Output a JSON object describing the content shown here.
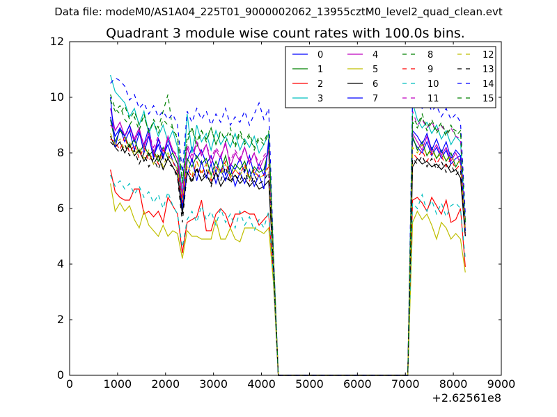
{
  "suptitle": "Data file: modeM0/AS1A04_225T01_9000002062_13955cztM0_level2_quad_clean.evt",
  "chart_data": {
    "type": "line",
    "title": "Quadrant 3 module wise count rates with 100.0s bins.",
    "xlabel": "",
    "ylabel": "",
    "x_offset_label": "+2.62561e8",
    "xlim": [
      0,
      9000
    ],
    "ylim": [
      0,
      12
    ],
    "xticks": [
      0,
      1000,
      2000,
      3000,
      4000,
      5000,
      6000,
      7000,
      8000,
      9000
    ],
    "yticks": [
      0,
      2,
      4,
      6,
      8,
      10,
      12
    ],
    "legend_position": "top-right",
    "legend_columns": 4,
    "grid": false,
    "x": [
      850,
      950,
      1050,
      1150,
      1250,
      1350,
      1450,
      1550,
      1650,
      1750,
      1850,
      1950,
      2050,
      2150,
      2250,
      2350,
      2450,
      2550,
      2650,
      2750,
      2850,
      2950,
      3050,
      3150,
      3250,
      3350,
      3450,
      3550,
      3650,
      3750,
      3850,
      3950,
      4050,
      4150,
      4250,
      4350,
      7000,
      7050,
      7150,
      7250,
      7350,
      7450,
      7550,
      7650,
      7750,
      7850,
      7950,
      8050,
      8150,
      8250
    ],
    "series": [
      {
        "name": "0",
        "color": "#0000ff",
        "dash": "solid",
        "values": [
          9.3,
          8.6,
          8.9,
          8.4,
          8.8,
          8.1,
          8.7,
          8.3,
          8.9,
          7.9,
          8.3,
          7.8,
          8.5,
          8.0,
          7.6,
          5.9,
          7.7,
          8.2,
          7.8,
          8.1,
          7.6,
          7.9,
          7.3,
          7.9,
          7.2,
          7.6,
          7.4,
          7.8,
          7.3,
          7.9,
          7.2,
          7.6,
          7.2,
          8.3,
          4.0,
          0.0,
          0.0,
          0.0,
          8.5,
          8.2,
          8.0,
          8.4,
          7.9,
          8.2,
          7.8,
          8.1,
          7.6,
          7.8,
          7.9,
          5.0
        ]
      },
      {
        "name": "1",
        "color": "#008000",
        "dash": "solid",
        "values": [
          9.2,
          8.4,
          8.8,
          8.6,
          8.2,
          8.5,
          8.0,
          8.3,
          7.9,
          8.1,
          7.7,
          8.2,
          7.8,
          8.0,
          7.6,
          6.2,
          7.8,
          7.5,
          7.9,
          7.6,
          7.8,
          7.2,
          7.7,
          7.3,
          7.9,
          7.2,
          7.6,
          7.4,
          7.7,
          7.1,
          7.5,
          7.3,
          7.4,
          8.1,
          3.9,
          0.0,
          0.0,
          0.0,
          8.6,
          8.1,
          8.4,
          7.9,
          8.2,
          7.8,
          8.1,
          7.7,
          8.0,
          7.5,
          7.8,
          5.2
        ]
      },
      {
        "name": "2",
        "color": "#ff0000",
        "dash": "solid",
        "values": [
          7.4,
          6.6,
          6.4,
          6.3,
          6.3,
          6.7,
          6.7,
          5.8,
          5.9,
          5.7,
          5.9,
          5.5,
          6.4,
          6.1,
          5.8,
          4.4,
          5.5,
          5.6,
          5.7,
          6.3,
          5.2,
          5.2,
          5.8,
          6.0,
          5.8,
          5.3,
          5.8,
          5.8,
          5.9,
          5.8,
          5.8,
          5.4,
          5.6,
          5.8,
          3.5,
          0.0,
          0.0,
          0.0,
          6.3,
          6.4,
          6.2,
          5.9,
          6.4,
          6.1,
          5.8,
          6.3,
          5.5,
          5.6,
          6.0,
          3.9
        ]
      },
      {
        "name": "3",
        "color": "#00bfbf",
        "dash": "solid",
        "values": [
          10.8,
          10.2,
          10.0,
          9.8,
          9.3,
          9.6,
          9.0,
          9.5,
          8.7,
          9.1,
          8.6,
          9.0,
          8.4,
          8.8,
          8.2,
          6.5,
          9.4,
          8.0,
          9.0,
          8.4,
          8.7,
          8.1,
          8.8,
          8.3,
          8.6,
          8.2,
          8.7,
          8.1,
          8.5,
          8.2,
          8.6,
          8.0,
          8.3,
          8.7,
          4.2,
          0.0,
          0.0,
          0.0,
          9.8,
          9.2,
          8.9,
          9.1,
          8.7,
          9.0,
          8.5,
          8.8,
          8.3,
          8.6,
          8.4,
          5.5
        ]
      },
      {
        "name": "4",
        "color": "#bf00bf",
        "dash": "solid",
        "values": [
          9.6,
          8.8,
          9.1,
          8.6,
          9.0,
          8.5,
          8.9,
          8.2,
          8.7,
          8.0,
          8.5,
          7.9,
          8.6,
          8.1,
          7.8,
          6.4,
          8.2,
          7.7,
          8.4,
          7.9,
          8.3,
          7.6,
          8.1,
          7.8,
          8.4,
          7.5,
          8.0,
          7.7,
          8.2,
          7.6,
          8.0,
          7.4,
          7.8,
          8.0,
          4.0,
          0.0,
          0.0,
          0.0,
          8.7,
          8.4,
          8.1,
          8.6,
          8.0,
          8.3,
          7.9,
          8.2,
          7.7,
          8.0,
          7.6,
          5.3
        ]
      },
      {
        "name": "5",
        "color": "#bfbf00",
        "dash": "solid",
        "values": [
          6.9,
          5.9,
          6.2,
          5.9,
          6.1,
          5.6,
          5.3,
          5.9,
          5.4,
          5.2,
          5.0,
          5.4,
          5.0,
          5.2,
          5.1,
          4.2,
          5.2,
          5.0,
          5.0,
          4.9,
          4.9,
          4.9,
          5.6,
          4.9,
          4.9,
          5.3,
          4.9,
          4.8,
          5.3,
          5.3,
          5.3,
          5.2,
          5.1,
          5.3,
          3.3,
          0.0,
          0.0,
          0.0,
          5.5,
          5.9,
          5.6,
          5.8,
          5.4,
          4.9,
          5.5,
          5.3,
          4.9,
          5.1,
          4.9,
          3.7
        ]
      },
      {
        "name": "6",
        "color": "#000000",
        "dash": "solid",
        "values": [
          8.6,
          8.2,
          8.4,
          8.0,
          8.3,
          7.9,
          8.1,
          7.7,
          8.0,
          7.6,
          7.9,
          7.4,
          7.8,
          7.5,
          7.2,
          5.8,
          7.3,
          7.0,
          7.4,
          7.0,
          7.2,
          6.9,
          7.3,
          6.8,
          7.1,
          7.0,
          7.2,
          6.9,
          7.1,
          6.8,
          7.0,
          6.7,
          6.8,
          7.0,
          3.8,
          0.0,
          0.0,
          0.0,
          7.5,
          7.8,
          7.6,
          7.7,
          7.5,
          7.6,
          7.4,
          7.6,
          7.3,
          7.4,
          7.1,
          5.0
        ]
      },
      {
        "name": "7",
        "color": "#0000ff",
        "dash": "solid",
        "values": [
          10.0,
          8.2,
          8.9,
          8.6,
          9.0,
          8.4,
          8.8,
          8.0,
          8.6,
          7.8,
          8.5,
          7.9,
          8.3,
          7.7,
          7.4,
          6.1,
          7.2,
          7.8,
          7.0,
          7.7,
          7.1,
          7.6,
          6.9,
          7.4,
          7.0,
          7.5,
          6.8,
          7.3,
          6.9,
          7.4,
          6.8,
          7.2,
          6.7,
          8.5,
          3.7,
          0.0,
          0.0,
          0.0,
          8.8,
          8.6,
          8.3,
          8.7,
          8.1,
          8.5,
          8.0,
          8.4,
          7.8,
          8.1,
          7.9,
          5.2
        ]
      },
      {
        "name": "8",
        "color": "#008000",
        "dash": "dashed",
        "values": [
          9.9,
          9.5,
          9.7,
          9.2,
          9.0,
          9.3,
          8.8,
          9.4,
          8.7,
          9.2,
          8.9,
          9.5,
          10.1,
          8.8,
          8.6,
          7.0,
          8.4,
          8.9,
          8.2,
          8.8,
          8.4,
          8.9,
          8.3,
          8.7,
          8.5,
          8.9,
          8.3,
          8.8,
          8.4,
          8.7,
          8.2,
          8.6,
          8.4,
          8.8,
          4.3,
          0.0,
          0.0,
          0.0,
          9.1,
          8.9,
          9.3,
          8.8,
          9.1,
          8.7,
          9.0,
          8.6,
          8.9,
          8.8,
          8.7,
          5.6
        ]
      },
      {
        "name": "9",
        "color": "#ff0000",
        "dash": "dashed",
        "values": [
          8.5,
          8.4,
          8.1,
          8.6,
          8.0,
          8.3,
          7.8,
          8.2,
          7.7,
          8.0,
          7.6,
          8.1,
          7.9,
          7.7,
          7.3,
          6.2,
          7.5,
          7.1,
          7.7,
          7.2,
          7.6,
          7.0,
          7.5,
          7.3,
          7.7,
          7.1,
          7.4,
          7.2,
          7.6,
          7.0,
          7.4,
          7.1,
          7.2,
          7.5,
          3.9,
          0.0,
          0.0,
          0.0,
          8.0,
          7.8,
          8.1,
          7.7,
          8.0,
          7.6,
          7.9,
          7.5,
          7.8,
          7.4,
          7.6,
          5.1
        ]
      },
      {
        "name": "10",
        "color": "#00bfbf",
        "dash": "dashed",
        "values": [
          7.2,
          6.8,
          7.0,
          6.7,
          6.9,
          6.5,
          6.8,
          6.4,
          6.6,
          6.2,
          6.5,
          6.0,
          6.6,
          6.1,
          5.8,
          4.6,
          5.6,
          5.9,
          5.5,
          6.1,
          5.6,
          5.9,
          5.4,
          6.0,
          5.5,
          5.8,
          5.3,
          5.9,
          5.4,
          5.7,
          5.2,
          5.6,
          5.3,
          5.9,
          3.5,
          0.0,
          0.0,
          0.0,
          6.2,
          6.0,
          6.5,
          5.9,
          6.3,
          5.8,
          6.2,
          5.7,
          6.1,
          6.2,
          6.0,
          4.2
        ]
      },
      {
        "name": "11",
        "color": "#bf00bf",
        "dash": "dashed",
        "values": [
          9.0,
          8.8,
          9.1,
          8.6,
          8.9,
          8.4,
          8.8,
          8.3,
          8.7,
          8.2,
          8.6,
          8.0,
          8.5,
          8.1,
          7.9,
          6.6,
          8.3,
          7.9,
          8.4,
          8.0,
          8.3,
          7.8,
          8.2,
          7.9,
          8.3,
          7.7,
          8.1,
          7.8,
          8.2,
          7.7,
          8.0,
          7.6,
          7.9,
          8.1,
          4.0,
          0.0,
          0.0,
          0.0,
          9.5,
          9.0,
          9.2,
          8.9,
          9.1,
          8.8,
          9.0,
          8.7,
          8.9,
          8.6,
          8.5,
          5.4
        ]
      },
      {
        "name": "12",
        "color": "#bfbf00",
        "dash": "dashed",
        "values": [
          8.7,
          8.3,
          8.5,
          8.1,
          8.4,
          7.9,
          8.2,
          7.8,
          8.1,
          7.6,
          8.0,
          7.5,
          8.0,
          7.7,
          7.4,
          6.3,
          7.6,
          7.2,
          7.7,
          7.3,
          7.6,
          7.1,
          7.5,
          7.2,
          7.6,
          7.1,
          7.4,
          7.2,
          7.5,
          7.0,
          7.3,
          7.1,
          7.2,
          7.6,
          3.9,
          0.0,
          0.0,
          0.0,
          8.2,
          8.0,
          8.3,
          7.9,
          8.1,
          7.8,
          8.0,
          7.7,
          7.9,
          7.6,
          7.7,
          5.2
        ]
      },
      {
        "name": "13",
        "color": "#000000",
        "dash": "dashed",
        "values": [
          8.4,
          8.2,
          8.0,
          8.3,
          7.9,
          8.1,
          7.6,
          8.0,
          7.5,
          7.8,
          7.4,
          7.9,
          7.6,
          7.5,
          7.1,
          5.5,
          7.3,
          6.9,
          7.5,
          7.0,
          7.4,
          6.8,
          7.3,
          7.0,
          7.5,
          6.9,
          7.2,
          7.0,
          7.4,
          6.8,
          7.2,
          6.9,
          7.0,
          7.3,
          3.8,
          0.0,
          0.0,
          0.0,
          7.8,
          7.6,
          7.9,
          7.5,
          7.8,
          7.4,
          7.7,
          7.3,
          7.6,
          7.2,
          7.4,
          5.0
        ]
      },
      {
        "name": "14",
        "color": "#0000ff",
        "dash": "dashed",
        "values": [
          10.5,
          10.7,
          10.6,
          10.4,
          9.9,
          10.1,
          9.6,
          9.8,
          9.4,
          9.7,
          9.3,
          9.5,
          9.2,
          9.4,
          9.0,
          7.3,
          9.5,
          9.1,
          9.6,
          9.2,
          9.5,
          9.0,
          9.4,
          9.1,
          9.6,
          9.0,
          9.3,
          9.1,
          9.5,
          9.0,
          9.4,
          9.8,
          9.2,
          9.6,
          4.4,
          0.0,
          0.0,
          0.0,
          10.1,
          9.8,
          9.6,
          9.9,
          9.5,
          9.7,
          9.3,
          9.6,
          9.2,
          9.4,
          9.1,
          5.8
        ]
      },
      {
        "name": "15",
        "color": "#008000",
        "dash": "dashed",
        "values": [
          10.1,
          9.6,
          9.4,
          9.7,
          9.2,
          9.5,
          9.0,
          9.3,
          8.8,
          9.1,
          8.7,
          9.2,
          9.0,
          8.9,
          8.5,
          6.9,
          8.6,
          8.9,
          8.4,
          8.8,
          8.5,
          8.9,
          8.3,
          8.8,
          8.4,
          8.7,
          8.2,
          8.7,
          8.3,
          8.6,
          8.1,
          8.5,
          8.3,
          8.7,
          4.2,
          0.0,
          0.0,
          0.0,
          9.3,
          9.0,
          9.4,
          8.9,
          9.2,
          8.8,
          9.1,
          8.7,
          9.0,
          8.6,
          8.8,
          5.5
        ]
      }
    ]
  }
}
